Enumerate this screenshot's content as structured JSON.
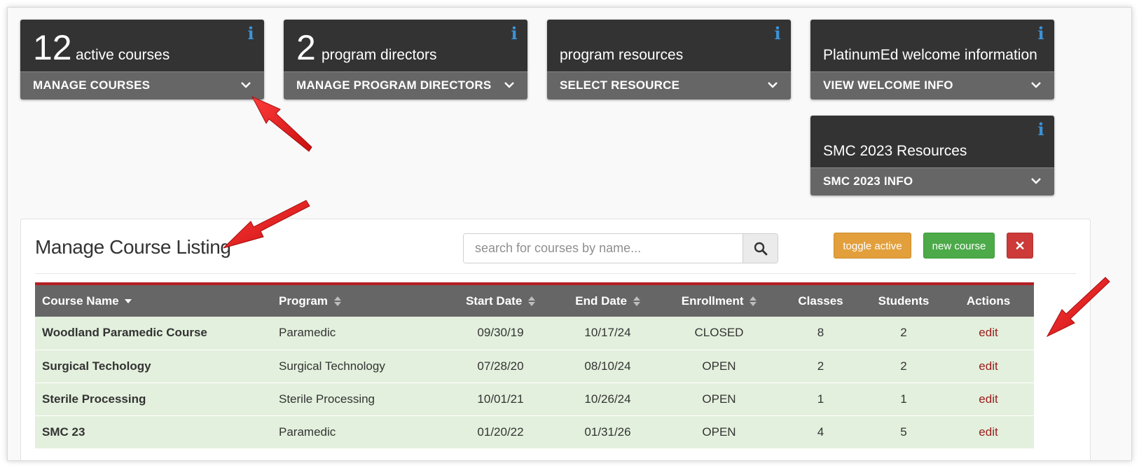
{
  "widgets": {
    "courses": {
      "count": "12",
      "label": "active courses",
      "button": "MANAGE COURSES"
    },
    "directors": {
      "count": "2",
      "label": "program directors",
      "button": "MANAGE PROGRAM DIRECTORS"
    },
    "resources": {
      "count": "",
      "label": "program resources",
      "button": "SELECT RESOURCE"
    },
    "welcome": {
      "count": "",
      "label": "PlatinumEd welcome information",
      "button": "VIEW WELCOME INFO"
    },
    "smc": {
      "count": "",
      "label": "SMC 2023 Resources",
      "button": "SMC 2023 INFO"
    },
    "info_glyph": "i"
  },
  "panel": {
    "title": "Manage Course Listing",
    "search_placeholder": "search for courses by name...",
    "toggle_label": "toggle active",
    "new_label": "new course",
    "close_label": "✕"
  },
  "table": {
    "columns": [
      "Course Name",
      "Program",
      "Start Date",
      "End Date",
      "Enrollment",
      "Classes",
      "Students",
      "Actions"
    ],
    "rows": [
      {
        "name": "Woodland Paramedic Course",
        "program": "Paramedic",
        "start": "09/30/19",
        "end": "10/17/24",
        "enrollment": "CLOSED",
        "classes": "8",
        "students": "2",
        "action": "edit"
      },
      {
        "name": "Surgical Techology",
        "program": "Surgical Technology",
        "start": "07/28/20",
        "end": "08/10/24",
        "enrollment": "OPEN",
        "classes": "2",
        "students": "2",
        "action": "edit"
      },
      {
        "name": "Sterile Processing",
        "program": "Sterile Processing",
        "start": "10/01/21",
        "end": "10/26/24",
        "enrollment": "OPEN",
        "classes": "1",
        "students": "1",
        "action": "edit"
      },
      {
        "name": "SMC 23",
        "program": "Paramedic",
        "start": "01/20/22",
        "end": "01/31/26",
        "enrollment": "OPEN",
        "classes": "4",
        "students": "5",
        "action": "edit"
      }
    ]
  },
  "colors": {
    "widget_top": "#333333",
    "widget_bottom": "#666666",
    "info_icon": "#3a93d9",
    "table_header": "#666666",
    "table_accent": "#b51f24",
    "row_bg": "#e3f0dd",
    "toggle": "#e29f3c",
    "new": "#4caa49",
    "close": "#cc3a3a",
    "annotation_arrow": "#e11b1b"
  }
}
